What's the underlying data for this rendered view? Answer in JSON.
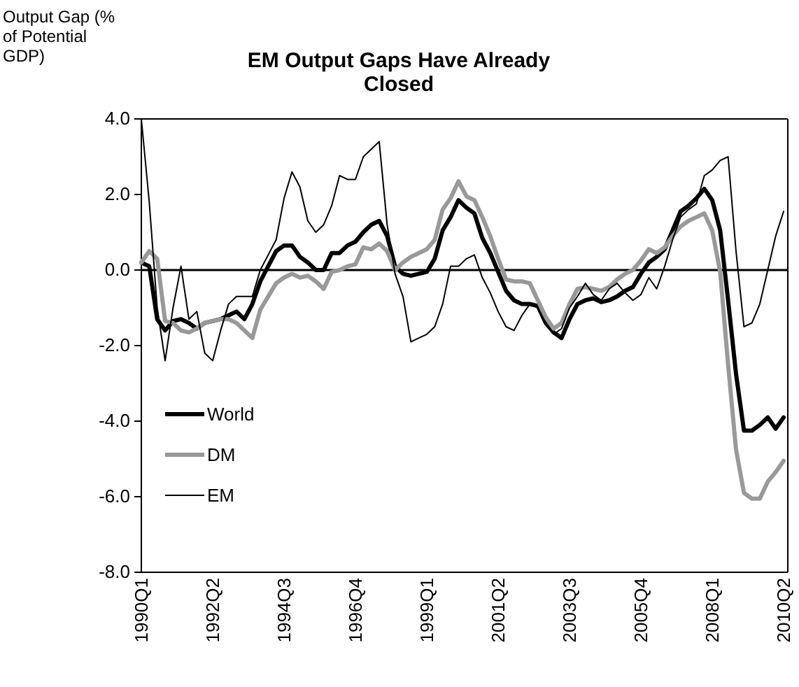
{
  "chart_data": {
    "type": "line",
    "title": "EM Output Gaps Have Already Closed",
    "ylabel": "Output Gap (% of Potential GDP)",
    "categories": [
      "1990Q1",
      null,
      null,
      null,
      null,
      null,
      null,
      null,
      null,
      "1992Q2",
      null,
      null,
      null,
      null,
      null,
      null,
      null,
      null,
      "1994Q3",
      null,
      null,
      null,
      null,
      null,
      null,
      null,
      null,
      "1996Q4",
      null,
      null,
      null,
      null,
      null,
      null,
      null,
      null,
      "1999Q1",
      null,
      null,
      null,
      null,
      null,
      null,
      null,
      null,
      "2001Q2",
      null,
      null,
      null,
      null,
      null,
      null,
      null,
      null,
      "2003Q3",
      null,
      null,
      null,
      null,
      null,
      null,
      null,
      null,
      "2005Q4",
      null,
      null,
      null,
      null,
      null,
      null,
      null,
      null,
      "2008Q1",
      null,
      null,
      null,
      null,
      null,
      null,
      null,
      null,
      "2010Q2"
    ],
    "series": [
      {
        "name": "World",
        "color": "#000000",
        "values": [
          0.2,
          0.1,
          -1.3,
          -1.6,
          -1.35,
          -1.3,
          -1.4,
          -1.55,
          -1.4,
          -1.35,
          -1.3,
          -1.2,
          -1.1,
          -1.3,
          -0.9,
          -0.3,
          0.1,
          0.5,
          0.65,
          0.65,
          0.35,
          0.2,
          0.0,
          0.0,
          0.45,
          0.45,
          0.65,
          0.75,
          1.0,
          1.2,
          1.3,
          0.9,
          0.1,
          -0.1,
          -0.15,
          -0.1,
          -0.05,
          0.3,
          1.05,
          1.4,
          1.85,
          1.65,
          1.5,
          0.85,
          0.45,
          -0.05,
          -0.55,
          -0.8,
          -0.9,
          -0.9,
          -0.95,
          -1.4,
          -1.65,
          -1.8,
          -1.3,
          -0.9,
          -0.8,
          -0.75,
          -0.85,
          -0.8,
          -0.7,
          -0.55,
          -0.45,
          -0.1,
          0.2,
          0.35,
          0.55,
          1.05,
          1.55,
          1.7,
          1.9,
          2.15,
          1.85,
          1.05,
          -0.8,
          -2.75,
          -4.25,
          -4.25,
          -4.1,
          -3.9,
          -4.2,
          -3.9
        ]
      },
      {
        "name": "DM",
        "color": "#999999",
        "values": [
          0.2,
          0.5,
          0.3,
          -1.35,
          -1.4,
          -1.6,
          -1.65,
          -1.55,
          -1.4,
          -1.35,
          -1.3,
          -1.3,
          -1.4,
          -1.6,
          -1.8,
          -1.05,
          -0.7,
          -0.35,
          -0.2,
          -0.1,
          -0.2,
          -0.15,
          -0.3,
          -0.5,
          -0.05,
          0.0,
          0.1,
          0.15,
          0.6,
          0.55,
          0.7,
          0.5,
          0.0,
          0.2,
          0.35,
          0.45,
          0.55,
          0.8,
          1.6,
          1.9,
          2.35,
          1.95,
          1.85,
          1.4,
          0.9,
          0.3,
          -0.25,
          -0.3,
          -0.3,
          -0.35,
          -0.8,
          -1.25,
          -1.55,
          -1.4,
          -0.9,
          -0.5,
          -0.45,
          -0.5,
          -0.55,
          -0.45,
          -0.25,
          -0.1,
          0.0,
          0.25,
          0.55,
          0.45,
          0.6,
          0.9,
          1.15,
          1.3,
          1.4,
          1.5,
          1.05,
          -0.05,
          -2.5,
          -4.75,
          -5.9,
          -6.05,
          -6.05,
          -5.6,
          -5.35,
          -5.05
        ]
      },
      {
        "name": "EM",
        "color": "#000000",
        "values": [
          4.0,
          1.8,
          -1.0,
          -2.4,
          -1.0,
          0.1,
          -1.3,
          -1.1,
          -2.2,
          -2.4,
          -1.6,
          -0.9,
          -0.7,
          -0.7,
          -0.7,
          0.0,
          0.4,
          0.8,
          1.9,
          2.6,
          2.2,
          1.3,
          1.0,
          1.2,
          1.7,
          2.5,
          2.4,
          2.4,
          3.0,
          3.2,
          3.4,
          1.2,
          -0.1,
          -0.7,
          -1.9,
          -1.8,
          -1.7,
          -1.5,
          -0.9,
          0.1,
          0.1,
          0.3,
          0.4,
          -0.2,
          -0.6,
          -1.1,
          -1.5,
          -1.6,
          -1.2,
          -0.9,
          -1.0,
          -1.4,
          -1.7,
          -1.55,
          -1.0,
          -0.7,
          -0.35,
          -0.65,
          -0.8,
          -0.5,
          -0.35,
          -0.6,
          -0.8,
          -0.65,
          -0.2,
          -0.5,
          0.1,
          0.8,
          1.4,
          1.6,
          1.75,
          2.5,
          2.65,
          2.9,
          3.0,
          0.5,
          -1.5,
          -1.4,
          -0.9,
          0.0,
          0.9,
          1.55
        ]
      }
    ],
    "ylim": [
      -8,
      4
    ],
    "yticks": [
      {
        "value": -8,
        "label": "-8.0"
      },
      {
        "value": -6,
        "label": "-6.0"
      },
      {
        "value": -4,
        "label": "-4.0"
      },
      {
        "value": -2,
        "label": "-2.0"
      },
      {
        "value": 0,
        "label": "0.0"
      },
      {
        "value": 2,
        "label": "2.0"
      },
      {
        "value": 4,
        "label": "4.0"
      }
    ],
    "ref_lines": [
      {
        "axis": "y",
        "value": 0,
        "color": "#000000"
      }
    ],
    "legend": "bottom left",
    "marker": "none",
    "line_style": "solid",
    "grid": false
  }
}
